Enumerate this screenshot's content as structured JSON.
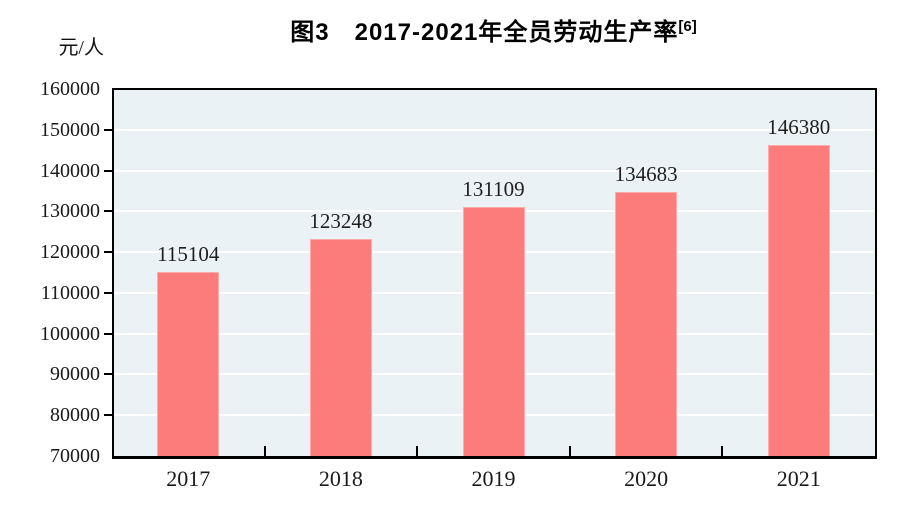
{
  "title": {
    "text": "图3　2017-2021年全员劳动生产率",
    "superscript": "[6]"
  },
  "y_axis": {
    "unit": "元/人"
  },
  "chart_data": {
    "type": "bar",
    "title": "图3 2017-2021年全员劳动生产率[6]",
    "categories": [
      "2017",
      "2018",
      "2019",
      "2020",
      "2021"
    ],
    "values": [
      115104,
      123248,
      131109,
      134683,
      146380
    ],
    "data_labels": [
      "115104",
      "123248",
      "131109",
      "134683",
      "146380"
    ],
    "xlabel": "",
    "ylabel": "元/人",
    "ylim": [
      70000,
      160000
    ],
    "ytick_step": 10000,
    "ytick_labels": [
      "70000",
      "80000",
      "90000",
      "100000",
      "110000",
      "120000",
      "130000",
      "140000",
      "150000",
      "160000"
    ],
    "grid": true,
    "legend": false,
    "colors": {
      "bar": "#FC7C7C",
      "bar_edge": "#FDABAB",
      "plot_background": "#EBF2F5",
      "gridline": "#FFFFFF",
      "axis": "#000000",
      "label_text": "#1A1A1A"
    }
  }
}
